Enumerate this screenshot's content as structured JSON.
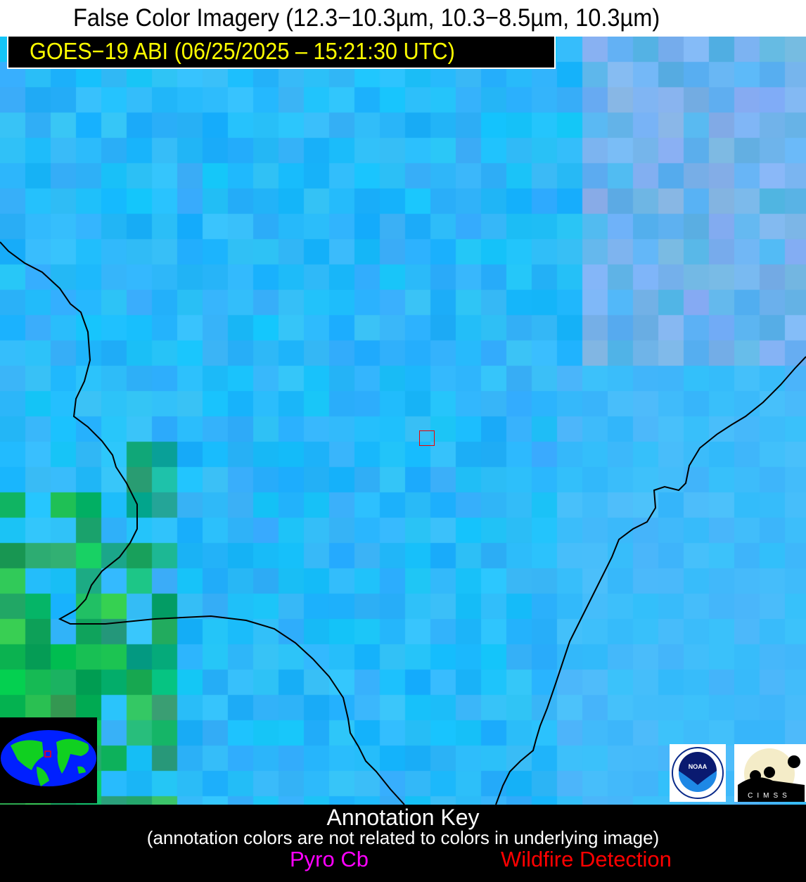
{
  "header": {
    "title": "False Color Imagery (12.3−10.3µm, 10.3−8.5µm, 10.3µm)"
  },
  "timestamp": {
    "label": "GOES−19 ABI (06/25/2025 – 15:21:30 UTC)"
  },
  "logos": {
    "noaa": "NOAA",
    "cimss": "CIMSS"
  },
  "annotation_key": {
    "title": "Annotation Key",
    "subtitle": "(annotation colors are not related to colors in underlying image)",
    "items": [
      {
        "label": "Pyro Cb",
        "color": "#ff00ff"
      },
      {
        "label": "Wildfire Detection",
        "color": "#ff0000"
      }
    ]
  },
  "colors": {
    "marker": "#ff0000",
    "title_text": "#000000",
    "timestamp_text": "#ffff00",
    "coastline": "#000000"
  }
}
